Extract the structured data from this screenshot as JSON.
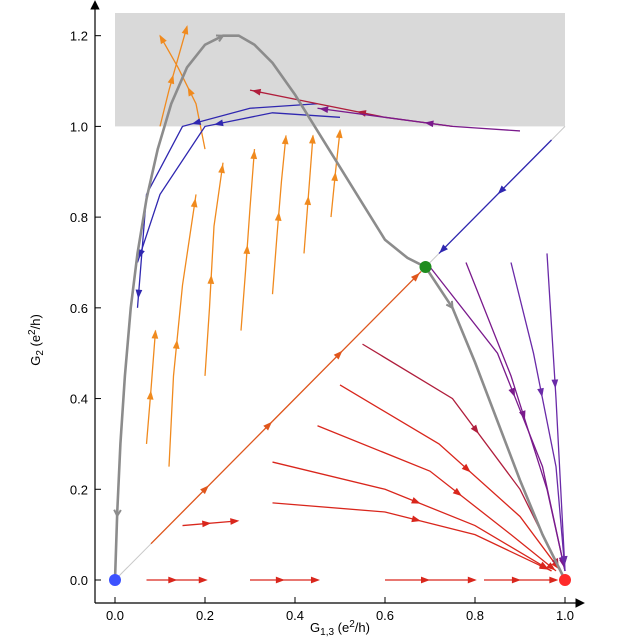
{
  "chart_data": {
    "type": "line",
    "title": "",
    "xlabel": "G1,3 (e2/h)",
    "xlabel_parts": {
      "base": "G",
      "sub": "1,3",
      "open": " (e",
      "sup": "2",
      "close": "/h)"
    },
    "ylabel": "G2 (e2/h)",
    "ylabel_parts": {
      "base": "G",
      "sub": "2",
      "open": " (e",
      "sup": "2",
      "close": "/h)"
    },
    "xlim": [
      0,
      1.0
    ],
    "ylim": [
      0,
      1.25
    ],
    "x_ticks": [
      "0.0",
      "0.2",
      "0.4",
      "0.6",
      "0.8",
      "1.0"
    ],
    "x_tick_values": [
      0,
      0.2,
      0.4,
      0.6,
      0.8,
      1.0
    ],
    "y_ticks": [
      "0.0",
      "0.2",
      "0.4",
      "0.6",
      "0.8",
      "1.0",
      "1.2"
    ],
    "y_tick_values": [
      0,
      0.2,
      0.4,
      0.6,
      0.8,
      1.0,
      1.2
    ],
    "grid": false,
    "shaded_region": {
      "x": [
        0,
        1.0
      ],
      "y": [
        1.0,
        1.25
      ],
      "color": "#d9d9d9"
    },
    "diagonal": {
      "from": [
        0,
        0
      ],
      "to": [
        1.0,
        1.0
      ],
      "color": "#c8c8c8"
    },
    "colors": {
      "orange": "#f08a1e",
      "deep_orange": "#e0561c",
      "red": "#d9261c",
      "crimson": "#b01e3c",
      "purple": "#7a1a8c",
      "violet": "#6a2aa8",
      "blue": "#2f27b0",
      "gray": "#8c8c8c"
    },
    "fixed_points": [
      {
        "x": 0.0,
        "y": 0.0,
        "color": "#3d52ff"
      },
      {
        "x": 0.69,
        "y": 0.69,
        "color": "#1e8c1e"
      },
      {
        "x": 1.0,
        "y": 0.0,
        "color": "#ff2a2a"
      }
    ],
    "separatrix": {
      "color": "#8c8c8c",
      "x": [
        0.0,
        0.005,
        0.012,
        0.022,
        0.035,
        0.05,
        0.07,
        0.095,
        0.125,
        0.16,
        0.2,
        0.24,
        0.275,
        0.31,
        0.35,
        0.4,
        0.45,
        0.5,
        0.55,
        0.6,
        0.65,
        0.69,
        0.75,
        0.8,
        0.85,
        0.9,
        0.95,
        1.0
      ],
      "y": [
        0.0,
        0.15,
        0.3,
        0.45,
        0.6,
        0.72,
        0.84,
        0.95,
        1.05,
        1.13,
        1.18,
        1.2,
        1.2,
        1.18,
        1.14,
        1.07,
        0.99,
        0.91,
        0.83,
        0.75,
        0.71,
        0.69,
        0.6,
        0.48,
        0.35,
        0.22,
        0.1,
        0.0
      ]
    },
    "arrow_traces": [
      {
        "color": "#d9261c",
        "x": [
          0.07,
          0.2
        ],
        "y": [
          0.0,
          0.0
        ]
      },
      {
        "color": "#d9261c",
        "x": [
          0.3,
          0.45
        ],
        "y": [
          0.0,
          0.0
        ]
      },
      {
        "color": "#d9261c",
        "x": [
          0.6,
          0.8
        ],
        "y": [
          0.0,
          0.0
        ]
      },
      {
        "color": "#d9261c",
        "x": [
          0.82,
          0.98
        ],
        "y": [
          0.0,
          0.0
        ]
      },
      {
        "color": "#d9261c",
        "x": [
          0.15,
          0.27
        ],
        "y": [
          0.12,
          0.13
        ]
      },
      {
        "color": "#d9261c",
        "x": [
          0.35,
          0.6,
          0.8,
          0.97
        ],
        "y": [
          0.17,
          0.15,
          0.1,
          0.02
        ]
      },
      {
        "color": "#d9261c",
        "x": [
          0.35,
          0.6,
          0.8,
          0.97
        ],
        "y": [
          0.26,
          0.2,
          0.12,
          0.02
        ]
      },
      {
        "color": "#d9261c",
        "x": [
          0.45,
          0.7,
          0.88,
          0.98
        ],
        "y": [
          0.34,
          0.24,
          0.1,
          0.02
        ]
      },
      {
        "color": "#d9261c",
        "x": [
          0.5,
          0.72,
          0.9,
          0.99
        ],
        "y": [
          0.43,
          0.3,
          0.14,
          0.02
        ]
      },
      {
        "color": "#e0561c",
        "x": [
          0.08,
          0.35
        ],
        "y": [
          0.08,
          0.35
        ]
      },
      {
        "color": "#e0561c",
        "x": [
          0.35,
          0.68
        ],
        "y": [
          0.35,
          0.68
        ]
      },
      {
        "color": "#b01e3c",
        "x": [
          0.55,
          0.75,
          0.9,
          0.99
        ],
        "y": [
          0.52,
          0.4,
          0.2,
          0.02
        ]
      },
      {
        "color": "#7a1a8c",
        "x": [
          0.7,
          0.85,
          0.95,
          1.0
        ],
        "y": [
          0.69,
          0.5,
          0.25,
          0.02
        ]
      },
      {
        "color": "#7a1a8c",
        "x": [
          0.78,
          0.88,
          0.96,
          1.0
        ],
        "y": [
          0.7,
          0.45,
          0.2,
          0.02
        ]
      },
      {
        "color": "#6a2aa8",
        "x": [
          0.88,
          0.93,
          0.98,
          1.0
        ],
        "y": [
          0.7,
          0.5,
          0.25,
          0.02
        ]
      },
      {
        "color": "#6a2aa8",
        "x": [
          0.96,
          0.98,
          1.0
        ],
        "y": [
          0.72,
          0.4,
          0.02
        ]
      },
      {
        "color": "#2f27b0",
        "x": [
          0.97,
          0.72
        ],
        "y": [
          0.97,
          0.72
        ]
      },
      {
        "color": "#f08a1e",
        "x": [
          0.07,
          0.08,
          0.09
        ],
        "y": [
          0.3,
          0.42,
          0.55
        ]
      },
      {
        "color": "#f08a1e",
        "x": [
          0.12,
          0.13,
          0.15,
          0.18
        ],
        "y": [
          0.25,
          0.45,
          0.65,
          0.85
        ]
      },
      {
        "color": "#f08a1e",
        "x": [
          0.2,
          0.21,
          0.22,
          0.24
        ],
        "y": [
          0.45,
          0.6,
          0.78,
          0.92
        ]
      },
      {
        "color": "#f08a1e",
        "x": [
          0.28,
          0.29,
          0.3,
          0.31
        ],
        "y": [
          0.55,
          0.68,
          0.82,
          0.95
        ]
      },
      {
        "color": "#f08a1e",
        "x": [
          0.35,
          0.36,
          0.37,
          0.38
        ],
        "y": [
          0.63,
          0.76,
          0.88,
          0.98
        ]
      },
      {
        "color": "#f08a1e",
        "x": [
          0.42,
          0.43,
          0.44
        ],
        "y": [
          0.72,
          0.85,
          0.98
        ]
      },
      {
        "color": "#f08a1e",
        "x": [
          0.48,
          0.49,
          0.5
        ],
        "y": [
          0.8,
          0.9,
          0.99
        ]
      },
      {
        "color": "#f08a1e",
        "x": [
          0.2,
          0.18,
          0.14,
          0.1
        ],
        "y": [
          0.95,
          1.05,
          1.13,
          1.2
        ]
      },
      {
        "color": "#2f27b0",
        "x": [
          0.5,
          0.35,
          0.2,
          0.1,
          0.05
        ],
        "y": [
          1.02,
          1.03,
          1.0,
          0.85,
          0.7
        ]
      },
      {
        "color": "#2f27b0",
        "x": [
          0.45,
          0.3,
          0.15,
          0.07,
          0.05
        ],
        "y": [
          1.05,
          1.04,
          1.0,
          0.85,
          0.6
        ]
      },
      {
        "color": "#b01e3c",
        "x": [
          0.75,
          0.6,
          0.45,
          0.3
        ],
        "y": [
          1.0,
          1.02,
          1.05,
          1.08
        ]
      },
      {
        "color": "#7a1a8c",
        "x": [
          0.9,
          0.75,
          0.6,
          0.45
        ],
        "y": [
          0.99,
          1.0,
          1.02,
          1.04
        ]
      },
      {
        "color": "#f08a1e",
        "x": [
          0.1,
          0.12,
          0.14,
          0.16
        ],
        "y": [
          1.0,
          1.08,
          1.15,
          1.22
        ]
      }
    ]
  }
}
